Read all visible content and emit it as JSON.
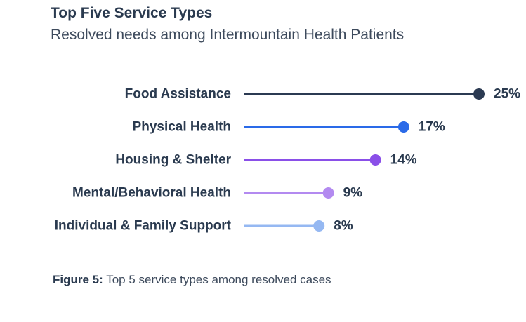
{
  "chart_data": {
    "type": "lollipop",
    "title": "Top Five Service Types",
    "subtitle": "Resolved needs among Intermountain Health Patients",
    "categories": [
      "Food Assistance",
      "Physical Health",
      "Housing & Shelter",
      "Mental/Behavioral Health",
      "Individual & Family Support"
    ],
    "values": [
      25,
      17,
      14,
      9,
      8
    ],
    "value_labels": [
      "25%",
      "17%",
      "14%",
      "9%",
      "8%"
    ],
    "colors": [
      "#2b3a52",
      "#2a6ae8",
      "#8a4fe8",
      "#b38af0",
      "#95b8f2"
    ],
    "unit": "%",
    "xlim": [
      0,
      25
    ],
    "grid": false,
    "legend": "none"
  },
  "caption": {
    "label": "Figure 5:",
    "text": " Top 5 service types among resolved cases"
  }
}
